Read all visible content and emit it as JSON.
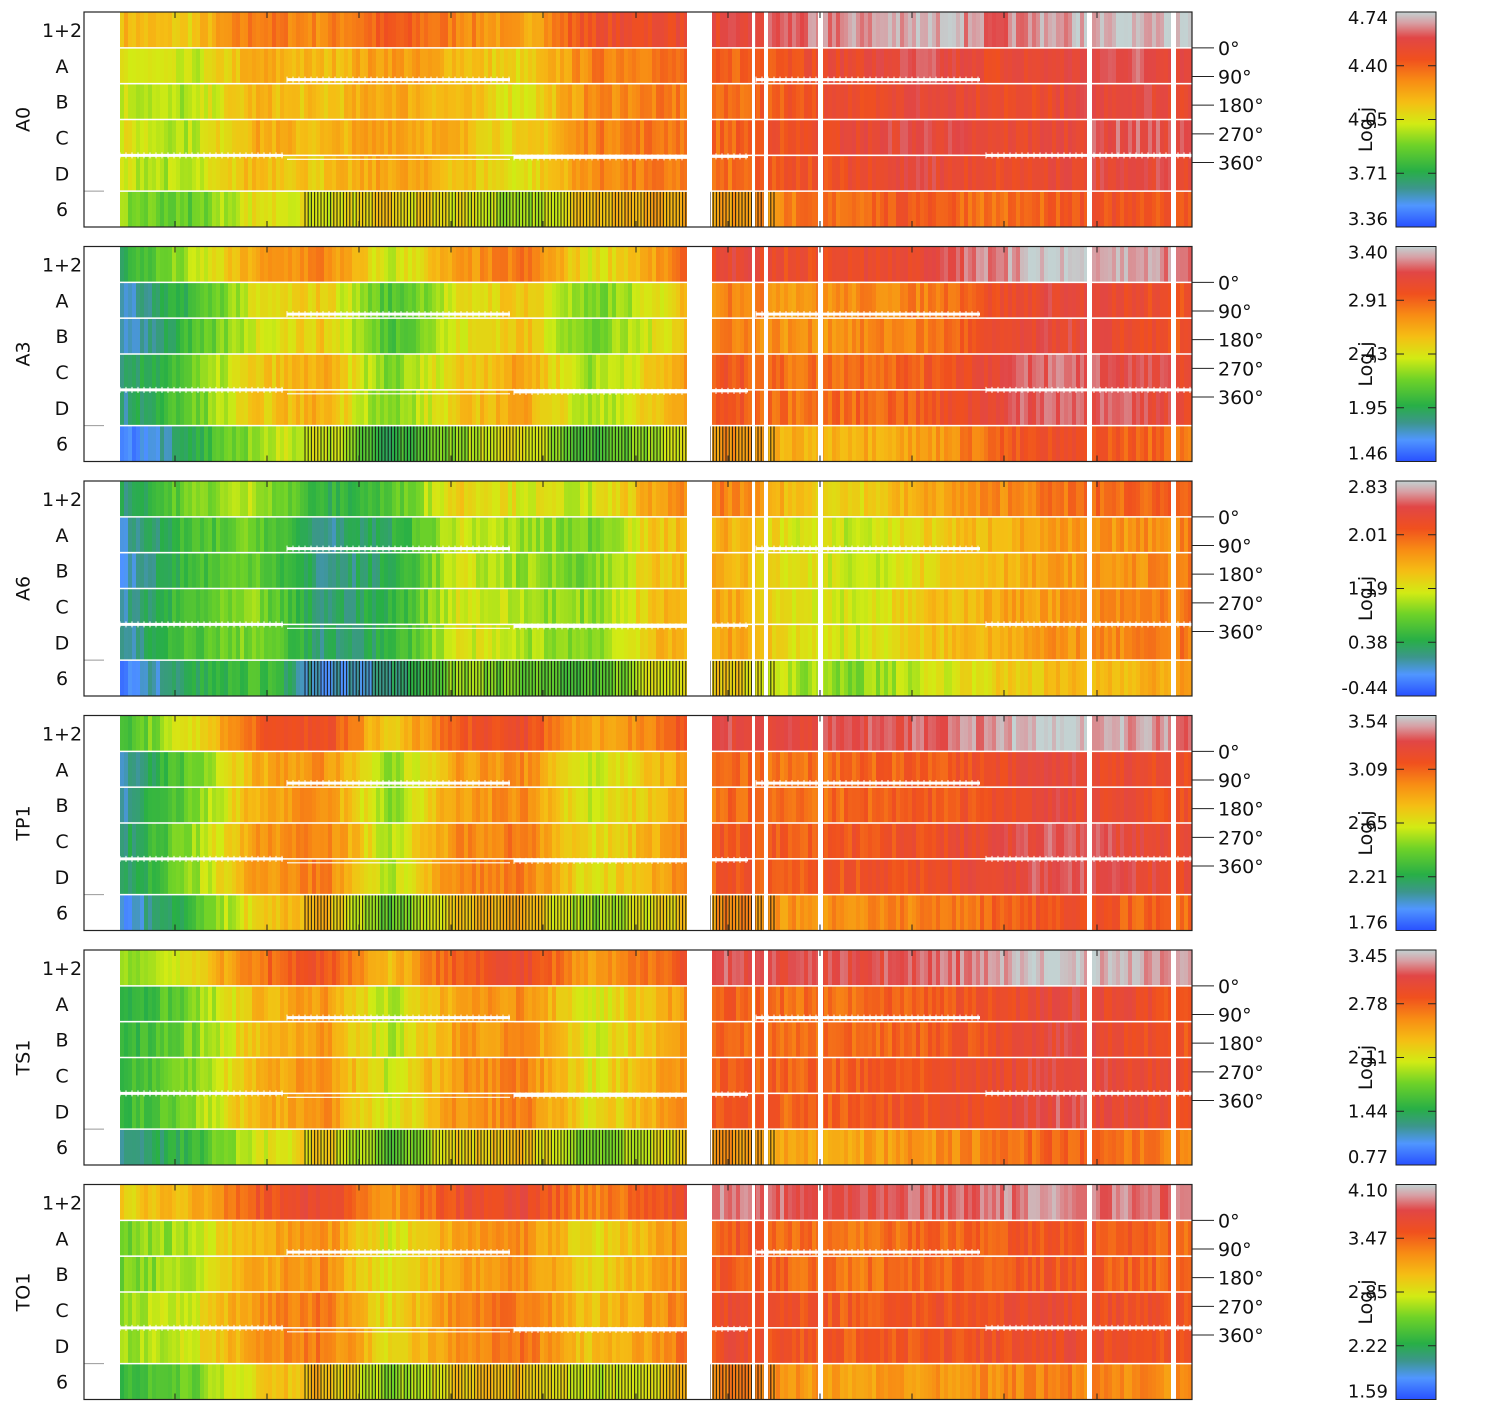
{
  "chart_data": {
    "type": "heatmap",
    "colorbar_label": "Log j",
    "channel_labels": [
      "1+2",
      "A",
      "B",
      "C",
      "D",
      "6"
    ],
    "angle_labels": [
      "0°",
      "90°",
      "180°",
      "270°",
      "360°"
    ],
    "panels": [
      {
        "name": "A0",
        "colorbar_ticks": [
          "4.74",
          "4.40",
          "4.05",
          "3.71",
          "3.36"
        ],
        "segment_levels": [
          0.5,
          0.45,
          0.62,
          0.58,
          0.66,
          0.6,
          0.52,
          0.7,
          0.72,
          0.74,
          0.8,
          0.84,
          0.88,
          0.82,
          0.85,
          0.9,
          0.86
        ],
        "row_offsets": [
          0.1,
          0.0,
          -0.02,
          0.0,
          -0.02,
          -0.1
        ]
      },
      {
        "name": "A3",
        "colorbar_ticks": [
          "3.40",
          "2.91",
          "2.43",
          "1.95",
          "1.46"
        ],
        "segment_levels": [
          0.18,
          0.35,
          0.55,
          0.62,
          0.38,
          0.55,
          0.64,
          0.42,
          0.56,
          0.78,
          0.72,
          0.74,
          0.76,
          0.86,
          0.92,
          0.88,
          0.84
        ],
        "row_offsets": [
          0.08,
          -0.06,
          -0.06,
          0.0,
          0.0,
          -0.12
        ]
      },
      {
        "name": "A6",
        "colorbar_ticks": [
          "2.83",
          "2.01",
          "1.19",
          "0.38",
          "-0.44"
        ],
        "segment_levels": [
          0.15,
          0.32,
          0.4,
          0.2,
          0.26,
          0.5,
          0.44,
          0.4,
          0.58,
          0.64,
          0.52,
          0.48,
          0.56,
          0.62,
          0.66,
          0.68,
          0.72
        ],
        "row_offsets": [
          0.06,
          -0.02,
          -0.02,
          0.0,
          0.0,
          -0.08
        ]
      },
      {
        "name": "TP1",
        "colorbar_ticks": [
          "3.54",
          "3.09",
          "2.65",
          "2.21",
          "1.76"
        ],
        "segment_levels": [
          0.2,
          0.4,
          0.65,
          0.72,
          0.44,
          0.68,
          0.72,
          0.5,
          0.62,
          0.78,
          0.76,
          0.78,
          0.8,
          0.84,
          0.9,
          0.86,
          0.82
        ],
        "row_offsets": [
          0.1,
          -0.04,
          -0.04,
          0.0,
          0.0,
          -0.1
        ]
      },
      {
        "name": "TS1",
        "colorbar_ticks": [
          "3.45",
          "2.78",
          "2.11",
          "1.44",
          "0.77"
        ],
        "segment_levels": [
          0.28,
          0.4,
          0.6,
          0.68,
          0.46,
          0.66,
          0.7,
          0.5,
          0.62,
          0.78,
          0.74,
          0.76,
          0.78,
          0.82,
          0.88,
          0.84,
          0.8
        ],
        "row_offsets": [
          0.12,
          -0.02,
          -0.02,
          0.0,
          0.0,
          -0.12
        ]
      },
      {
        "name": "TO1",
        "colorbar_ticks": [
          "4.10",
          "3.47",
          "2.85",
          "2.22",
          "1.59"
        ],
        "segment_levels": [
          0.42,
          0.48,
          0.66,
          0.72,
          0.52,
          0.68,
          0.72,
          0.56,
          0.66,
          0.82,
          0.78,
          0.76,
          0.78,
          0.8,
          0.82,
          0.8,
          0.78
        ],
        "row_offsets": [
          0.12,
          -0.04,
          -0.04,
          0.0,
          0.0,
          -0.12
        ]
      }
    ]
  }
}
